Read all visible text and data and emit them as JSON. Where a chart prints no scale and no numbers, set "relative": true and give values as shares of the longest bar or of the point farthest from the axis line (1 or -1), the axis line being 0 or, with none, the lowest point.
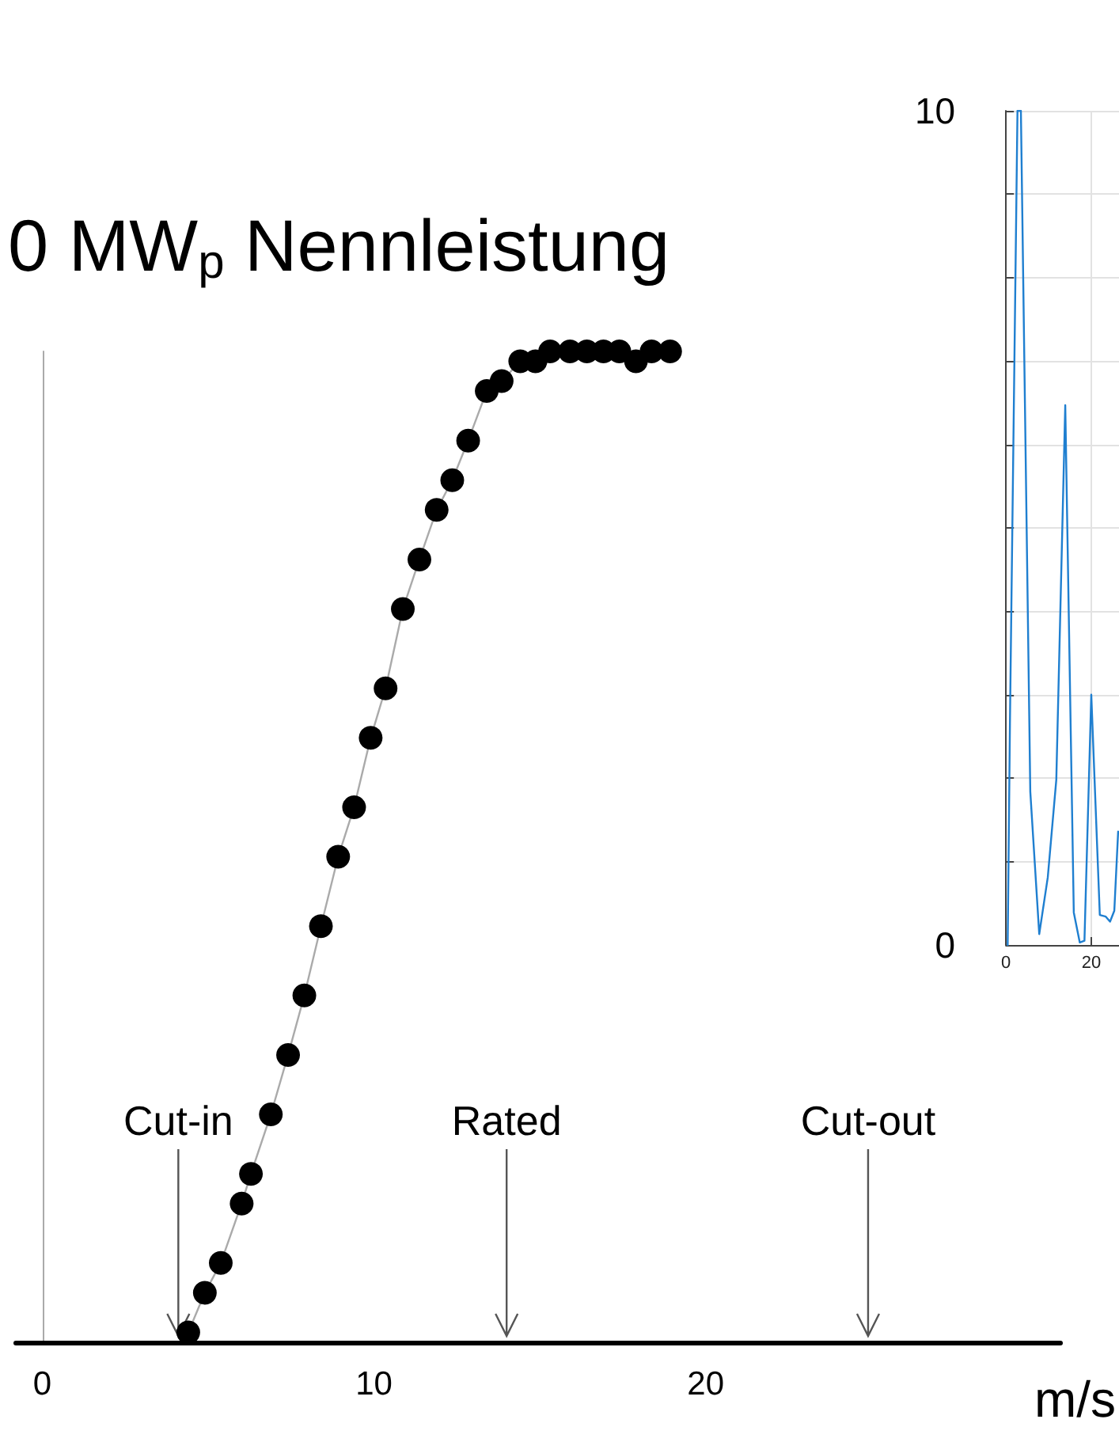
{
  "chart_data": [
    {
      "type": "line",
      "title": "0 MW$_{p}$ Nennleistung",
      "xlabel": "m/s",
      "relative": true,
      "marker": "circle",
      "line_style": "solid",
      "x": [
        4.4,
        4.9,
        5.38,
        6.01,
        6.29,
        6.89,
        7.41,
        7.9,
        8.4,
        8.92,
        9.4,
        9.9,
        10.35,
        10.87,
        11.37,
        11.89,
        12.36,
        12.84,
        13.4,
        13.85,
        14.41,
        14.87,
        15.31,
        15.91,
        16.42,
        16.92,
        17.4,
        17.9,
        18.37,
        18.93
      ],
      "series": [
        {
          "color": "#000000",
          "values": [
            0.01,
            0.05,
            0.08,
            0.14,
            0.17,
            0.23,
            0.29,
            0.35,
            0.42,
            0.49,
            0.54,
            0.61,
            0.66,
            0.74,
            0.79,
            0.84,
            0.87,
            0.91,
            0.96,
            0.97,
            0.99,
            0.99,
            1,
            1,
            1,
            1,
            1,
            0.99,
            1,
            1
          ]
        }
      ],
      "xlim": [
        -0.8,
        30.7
      ],
      "xticks": [
        0,
        10,
        20
      ],
      "ref_lines": [
        {
          "axis": "x",
          "value": 4.1,
          "label": "Cut-in",
          "color": "#555555"
        },
        {
          "axis": "x",
          "value": 14.0,
          "label": "Rated",
          "color": "#555555"
        },
        {
          "axis": "x",
          "value": 24.9,
          "label": "Cut-out",
          "color": "#555555"
        }
      ]
    },
    {
      "type": "line",
      "grid": true,
      "marker": "none",
      "x": [
        0.4,
        0.95,
        2.7,
        3.5,
        5.7,
        7.8,
        9.8,
        11.8,
        13.9,
        15.9,
        17.3,
        18.4,
        20,
        22,
        23.4,
        24.4,
        25.4,
        26.3
      ],
      "series": [
        {
          "color": "#1f7fd0",
          "values": [
            0,
            2.74,
            10,
            10,
            1.84,
            0.13,
            0.81,
            1.98,
            6.47,
            0.39,
            0.03,
            0.05,
            3,
            0.36,
            0.34,
            0.28,
            0.41,
            1.36
          ]
        }
      ],
      "xlim": [
        0,
        26.5
      ],
      "xticks": [
        0,
        20
      ],
      "ylim": [
        0,
        10
      ],
      "yticks": [
        0,
        {
          "value": 1,
          "label": null
        },
        {
          "value": 2,
          "label": null
        },
        {
          "value": 3,
          "label": null
        },
        {
          "value": 4,
          "label": null
        },
        {
          "value": 5,
          "label": null
        },
        {
          "value": 6,
          "label": null
        },
        {
          "value": 7,
          "label": null
        },
        {
          "value": 8,
          "label": null
        },
        {
          "value": 9,
          "label": null
        },
        10
      ]
    }
  ]
}
